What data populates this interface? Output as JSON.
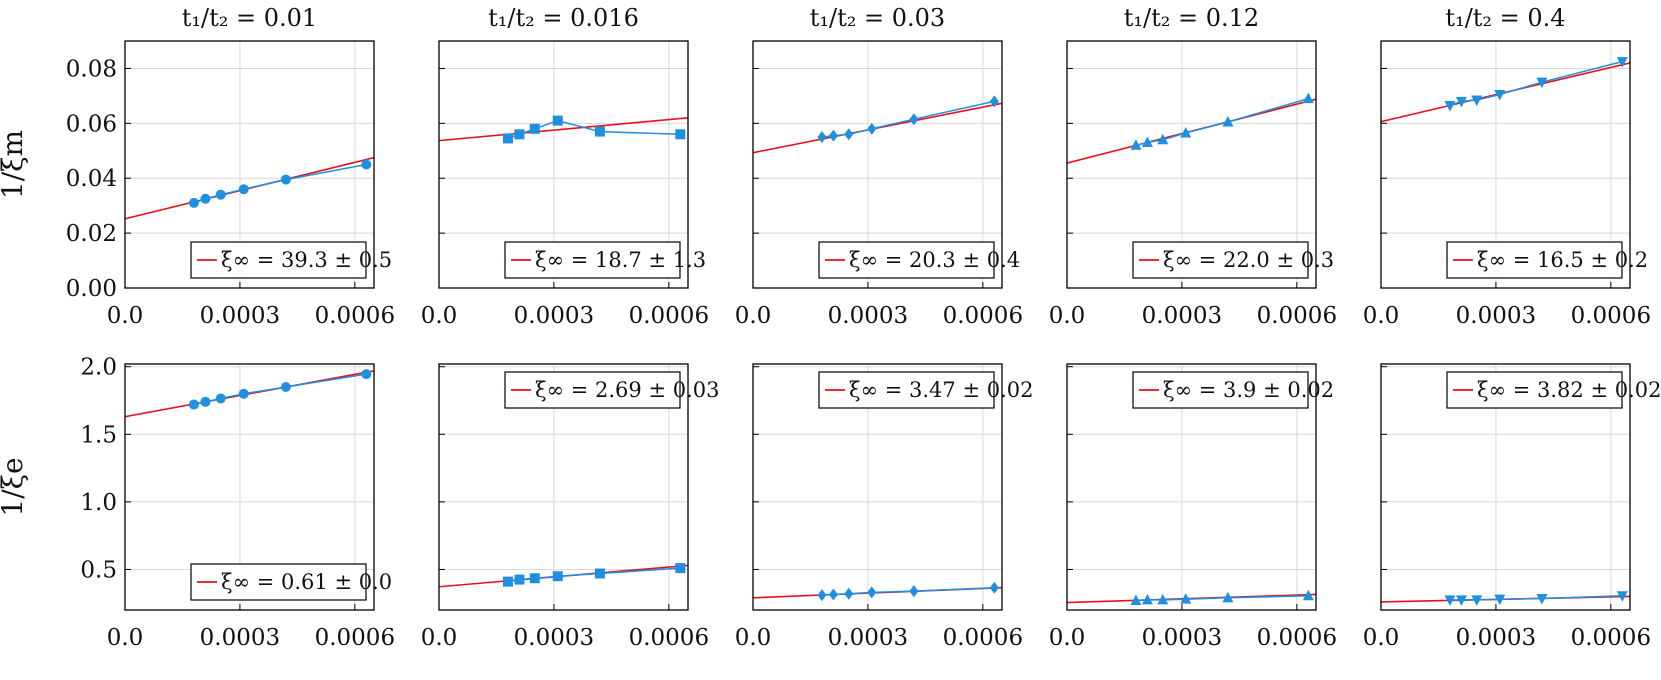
{
  "chart_data": [
    {
      "type": "scatter",
      "row": "xi_m",
      "title": "t₁/t₂ = 0.01",
      "ylabel": "1/ξm",
      "ylim": [
        0,
        0.09
      ],
      "xlim": [
        0,
        0.00065
      ],
      "x": [
        0.00018,
        0.00021,
        0.00025,
        0.00031,
        0.00042,
        0.00063
      ],
      "y": [
        0.031,
        0.0325,
        0.034,
        0.036,
        0.0395,
        0.045
      ],
      "fit": [
        0.0252,
        0.0475
      ],
      "marker": "circle",
      "legend": "ξ∞ = 39.3 ± 0.5",
      "legend_loc": "lower-right"
    },
    {
      "type": "scatter",
      "row": "xi_m",
      "title": "t₁/t₂ = 0.016",
      "ylabel": "",
      "ylim": [
        0,
        0.09
      ],
      "xlim": [
        0,
        0.00065
      ],
      "x": [
        0.00018,
        0.00021,
        0.00025,
        0.00031,
        0.00042,
        0.00063
      ],
      "y": [
        0.0545,
        0.056,
        0.058,
        0.061,
        0.057,
        0.056
      ],
      "fit": [
        0.0537,
        0.062
      ],
      "marker": "square",
      "legend": "ξ∞ = 18.7 ± 1.3",
      "legend_loc": "lower-right"
    },
    {
      "type": "scatter",
      "row": "xi_m",
      "title": "t₁/t₂ = 0.03",
      "ylabel": "",
      "ylim": [
        0,
        0.09
      ],
      "xlim": [
        0,
        0.00065
      ],
      "x": [
        0.00018,
        0.00021,
        0.00025,
        0.00031,
        0.00042,
        0.00063
      ],
      "y": [
        0.055,
        0.0555,
        0.056,
        0.058,
        0.0615,
        0.068
      ],
      "fit": [
        0.0493,
        0.0673
      ],
      "marker": "diamond",
      "legend": "ξ∞ = 20.3 ± 0.4",
      "legend_loc": "lower-right"
    },
    {
      "type": "scatter",
      "row": "xi_m",
      "title": "t₁/t₂ = 0.12",
      "ylabel": "",
      "ylim": [
        0,
        0.09
      ],
      "xlim": [
        0,
        0.00065
      ],
      "x": [
        0.00018,
        0.00021,
        0.00025,
        0.00031,
        0.00042,
        0.00063
      ],
      "y": [
        0.052,
        0.053,
        0.054,
        0.0565,
        0.0605,
        0.069
      ],
      "fit": [
        0.0455,
        0.0688
      ],
      "marker": "triangle-up",
      "legend": "ξ∞ = 22.0 ± 0.3",
      "legend_loc": "lower-right"
    },
    {
      "type": "scatter",
      "row": "xi_m",
      "title": "t₁/t₂ = 0.4",
      "ylabel": "",
      "ylim": [
        0,
        0.09
      ],
      "xlim": [
        0,
        0.00065
      ],
      "x": [
        0.00018,
        0.00021,
        0.00025,
        0.00031,
        0.00042,
        0.00063
      ],
      "y": [
        0.0665,
        0.068,
        0.0685,
        0.0705,
        0.075,
        0.0825
      ],
      "fit": [
        0.0606,
        0.082
      ],
      "marker": "triangle-down",
      "legend": "ξ∞ = 16.5 ± 0.2",
      "legend_loc": "lower-right"
    },
    {
      "type": "scatter",
      "row": "xi_e",
      "title": "",
      "ylabel": "1/ξe",
      "ylim": [
        0.2,
        2.02
      ],
      "xlim": [
        0,
        0.00065
      ],
      "x": [
        0.00018,
        0.00021,
        0.00025,
        0.00031,
        0.00042,
        0.00063
      ],
      "y": [
        1.72,
        1.74,
        1.765,
        1.8,
        1.85,
        1.945
      ],
      "fit": [
        1.63,
        1.97
      ],
      "marker": "circle",
      "legend": "ξ∞ = 0.61 ± 0.0",
      "legend_loc": "lower-right"
    },
    {
      "type": "scatter",
      "row": "xi_e",
      "title": "",
      "ylabel": "",
      "ylim": [
        0.2,
        2.02
      ],
      "xlim": [
        0,
        0.00065
      ],
      "x": [
        0.00018,
        0.00021,
        0.00025,
        0.00031,
        0.00042,
        0.00063
      ],
      "y": [
        0.41,
        0.425,
        0.435,
        0.45,
        0.47,
        0.51
      ],
      "fit": [
        0.372,
        0.53
      ],
      "marker": "square",
      "legend": "ξ∞ = 2.69 ± 0.03",
      "legend_loc": "upper-right"
    },
    {
      "type": "scatter",
      "row": "xi_e",
      "title": "",
      "ylabel": "",
      "ylim": [
        0.2,
        2.02
      ],
      "xlim": [
        0,
        0.00065
      ],
      "x": [
        0.00018,
        0.00021,
        0.00025,
        0.00031,
        0.00042,
        0.00063
      ],
      "y": [
        0.31,
        0.315,
        0.32,
        0.33,
        0.34,
        0.365
      ],
      "fit": [
        0.29,
        0.365
      ],
      "marker": "diamond",
      "legend": "ξ∞ = 3.47 ± 0.02",
      "legend_loc": "upper-right"
    },
    {
      "type": "scatter",
      "row": "xi_e",
      "title": "",
      "ylabel": "",
      "ylim": [
        0.2,
        2.02
      ],
      "xlim": [
        0,
        0.00065
      ],
      "x": [
        0.00018,
        0.00021,
        0.00025,
        0.00031,
        0.00042,
        0.00063
      ],
      "y": [
        0.27,
        0.275,
        0.275,
        0.28,
        0.29,
        0.305
      ],
      "fit": [
        0.255,
        0.315
      ],
      "marker": "triangle-up",
      "legend": "ξ∞ = 3.9 ± 0.02",
      "legend_loc": "upper-right"
    },
    {
      "type": "scatter",
      "row": "xi_e",
      "title": "",
      "ylabel": "",
      "ylim": [
        0.2,
        2.02
      ],
      "xlim": [
        0,
        0.00065
      ],
      "x": [
        0.00018,
        0.00021,
        0.00025,
        0.00031,
        0.00042,
        0.00063
      ],
      "y": [
        0.275,
        0.275,
        0.275,
        0.28,
        0.285,
        0.305
      ],
      "fit": [
        0.26,
        0.3
      ],
      "marker": "triangle-down",
      "legend": "ξ∞ = 3.82 ± 0.02",
      "legend_loc": "upper-right"
    }
  ],
  "axes": {
    "xticks": [
      0,
      0.0003,
      0.0006
    ],
    "xtick_labels": [
      "0.0",
      "0.0003",
      "0.0006"
    ],
    "yticks_top": [
      0,
      0.02,
      0.04,
      0.06,
      0.08
    ],
    "ytick_labels_top": [
      "0.00",
      "0.02",
      "0.04",
      "0.06",
      "0.08"
    ],
    "yticks_bottom": [
      0.5,
      1.0,
      1.5,
      2.0
    ],
    "ytick_labels_bottom": [
      "0.5",
      "1.0",
      "1.5",
      "2.0"
    ],
    "grid": true
  },
  "colors": {
    "data": "#1f8fe0",
    "fit": "#e8111a",
    "grid": "#d9d9d9",
    "frame": "#000000"
  }
}
